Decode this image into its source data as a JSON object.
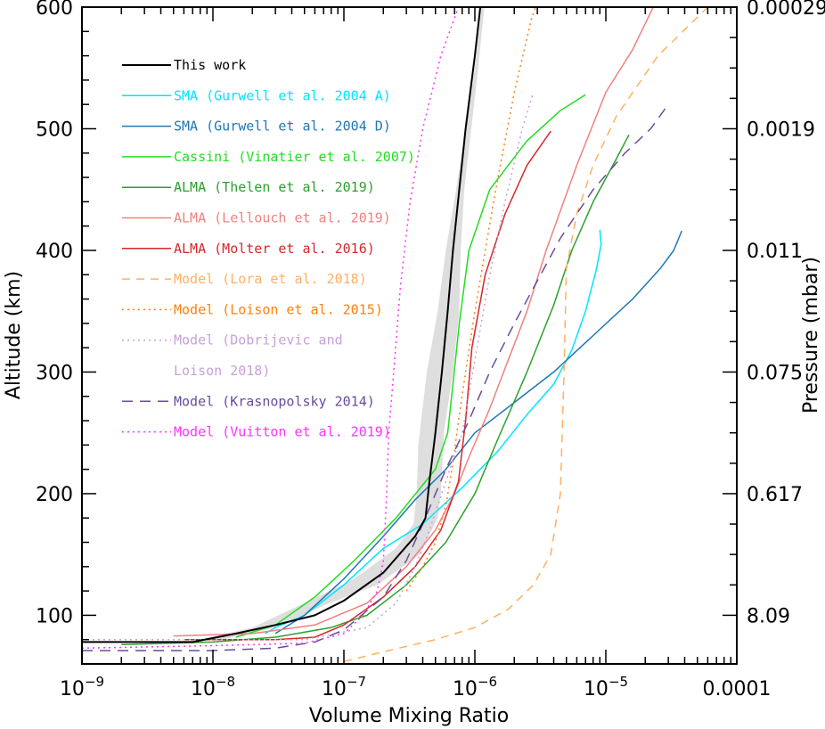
{
  "chart_data": {
    "type": "line",
    "xscale": "log",
    "xlim": [
      1e-09,
      0.0001
    ],
    "ylim": [
      60,
      600
    ],
    "xlabel": "Volume Mixing Ratio",
    "ylabel": "Altitude (km)",
    "y2label": "Pressure (mbar)",
    "x_ticks": [
      {
        "value": 1e-09,
        "base": "10",
        "exp": "−9"
      },
      {
        "value": 1e-08,
        "base": "10",
        "exp": "−8"
      },
      {
        "value": 1e-07,
        "base": "10",
        "exp": "−7"
      },
      {
        "value": 1e-06,
        "base": "10",
        "exp": "−6"
      },
      {
        "value": 1e-05,
        "base": "10",
        "exp": "−5"
      },
      {
        "value": 0.0001,
        "label": "0.0001"
      }
    ],
    "y_ticks": [
      100,
      200,
      300,
      400,
      500,
      600
    ],
    "y2_ticks": [
      {
        "altitude": 100,
        "label": "8.09"
      },
      {
        "altitude": 200,
        "label": "0.617"
      },
      {
        "altitude": 300,
        "label": "0.075"
      },
      {
        "altitude": 400,
        "label": "0.011"
      },
      {
        "altitude": 500,
        "label": "0.0019"
      },
      {
        "altitude": 600,
        "label": "0.00029"
      }
    ],
    "legend_position": "top-left",
    "uncertainty_band": {
      "color": "#dedede",
      "left": [
        [
          8e-09,
          80
        ],
        [
          2e-08,
          90
        ],
        [
          5e-08,
          110
        ],
        [
          1.2e-07,
          130
        ],
        [
          2.5e-07,
          155
        ],
        [
          3.4e-07,
          175
        ],
        [
          3.6e-07,
          200
        ],
        [
          3.7e-07,
          240
        ],
        [
          4.3e-07,
          300
        ],
        [
          5.2e-07,
          350
        ],
        [
          6e-07,
          400
        ],
        [
          7.2e-07,
          450
        ],
        [
          8.5e-07,
          500
        ],
        [
          1e-06,
          550
        ],
        [
          1.12e-06,
          600
        ]
      ],
      "right": [
        [
          1.2e-08,
          80
        ],
        [
          3e-08,
          90
        ],
        [
          7e-08,
          108
        ],
        [
          1.8e-07,
          125
        ],
        [
          3.8e-07,
          150
        ],
        [
          5.2e-07,
          180
        ],
        [
          5.5e-07,
          200
        ],
        [
          5.8e-07,
          250
        ],
        [
          6.8e-07,
          300
        ],
        [
          7.6e-07,
          350
        ],
        [
          7.8e-07,
          400
        ],
        [
          8.3e-07,
          450
        ],
        [
          9.4e-07,
          500
        ],
        [
          1.06e-06,
          550
        ],
        [
          1.18e-06,
          600
        ]
      ]
    },
    "series": [
      {
        "name": "This work",
        "color": "#000000",
        "dash": "",
        "width": 2,
        "points": [
          [
            1e-09,
            78
          ],
          [
            7e-09,
            78
          ],
          [
            1.5e-08,
            85
          ],
          [
            3e-08,
            92
          ],
          [
            6e-08,
            100
          ],
          [
            1e-07,
            112
          ],
          [
            2e-07,
            135
          ],
          [
            3.5e-07,
            165
          ],
          [
            4.2e-07,
            180
          ],
          [
            4.5e-07,
            210
          ],
          [
            5e-07,
            250
          ],
          [
            5.6e-07,
            300
          ],
          [
            6.2e-07,
            350
          ],
          [
            6.8e-07,
            400
          ],
          [
            7.6e-07,
            450
          ],
          [
            8.5e-07,
            500
          ],
          [
            1e-06,
            560
          ],
          [
            1.1e-06,
            600
          ]
        ]
      },
      {
        "name": "SMA (Gurwell et al. 2004 A)",
        "color": "#00e5ff",
        "dash": "",
        "width": 1.5,
        "points": [
          [
            2.5e-08,
            85
          ],
          [
            3e-08,
            90
          ],
          [
            5e-08,
            100
          ],
          [
            1e-07,
            125
          ],
          [
            2e-07,
            155
          ],
          [
            4e-07,
            175
          ],
          [
            8e-07,
            205
          ],
          [
            1.5e-06,
            235
          ],
          [
            2.5e-06,
            265
          ],
          [
            4e-06,
            290
          ],
          [
            5.5e-06,
            318
          ],
          [
            7e-06,
            350
          ],
          [
            8.5e-06,
            385
          ],
          [
            9.2e-06,
            405
          ],
          [
            9e-06,
            417
          ]
        ]
      },
      {
        "name": "SMA (Gurwell et al. 2004 D)",
        "color": "#1f77b4",
        "dash": "",
        "width": 1.5,
        "points": [
          [
            3e-08,
            85
          ],
          [
            5e-08,
            100
          ],
          [
            1e-07,
            130
          ],
          [
            2e-07,
            165
          ],
          [
            3.5e-07,
            195
          ],
          [
            6e-07,
            220
          ],
          [
            1e-06,
            250
          ],
          [
            2e-06,
            275
          ],
          [
            4e-06,
            300
          ],
          [
            8e-06,
            330
          ],
          [
            1.6e-05,
            360
          ],
          [
            2.6e-05,
            385
          ],
          [
            3.3e-05,
            400
          ],
          [
            3.8e-05,
            416
          ]
        ]
      },
      {
        "name": "Cassini (Vinatier et al. 2007)",
        "color": "#22dd22",
        "dash": "",
        "width": 1.5,
        "points": [
          [
            1.5e-08,
            82
          ],
          [
            3e-08,
            92
          ],
          [
            6e-08,
            115
          ],
          [
            1.2e-07,
            145
          ],
          [
            2.5e-07,
            180
          ],
          [
            5e-07,
            220
          ],
          [
            6.2e-07,
            250
          ],
          [
            6.8e-07,
            290
          ],
          [
            7.6e-07,
            340
          ],
          [
            9e-07,
            400
          ],
          [
            1.3e-06,
            450
          ],
          [
            2.5e-06,
            490
          ],
          [
            4.5e-06,
            515
          ],
          [
            7e-06,
            528
          ]
        ]
      },
      {
        "name": "ALMA (Thelen et al. 2019)",
        "color": "#2ca02c",
        "dash": "",
        "width": 1.5,
        "points": [
          [
            2e-09,
            76
          ],
          [
            1e-08,
            78
          ],
          [
            3e-08,
            82
          ],
          [
            8e-08,
            90
          ],
          [
            1.5e-07,
            100
          ],
          [
            3e-07,
            125
          ],
          [
            6e-07,
            160
          ],
          [
            1e-06,
            200
          ],
          [
            1.5e-06,
            245
          ],
          [
            2.5e-06,
            300
          ],
          [
            4e-06,
            355
          ],
          [
            5.5e-06,
            400
          ],
          [
            8e-06,
            440
          ],
          [
            1.2e-05,
            475
          ],
          [
            1.5e-05,
            495
          ]
        ]
      },
      {
        "name": "ALMA (Lellouch et al. 2019)",
        "color": "#f08080",
        "dash": "",
        "width": 1.5,
        "points": [
          [
            5e-09,
            83
          ],
          [
            2e-08,
            85
          ],
          [
            6e-08,
            92
          ],
          [
            1.5e-07,
            110
          ],
          [
            3e-07,
            140
          ],
          [
            5e-07,
            170
          ],
          [
            7e-07,
            200
          ],
          [
            9e-07,
            230
          ],
          [
            1.3e-06,
            270
          ],
          [
            1.8e-06,
            310
          ],
          [
            2.5e-06,
            350
          ],
          [
            3.5e-06,
            400
          ],
          [
            6e-06,
            470
          ],
          [
            1e-05,
            530
          ],
          [
            1.6e-05,
            565
          ],
          [
            2.3e-05,
            600
          ]
        ]
      },
      {
        "name": "ALMA (Molter et al. 2016)",
        "color": "#d62728",
        "dash": "",
        "width": 1.5,
        "points": [
          [
            6e-09,
            80
          ],
          [
            3e-08,
            80
          ],
          [
            6e-08,
            82
          ],
          [
            1e-07,
            92
          ],
          [
            2e-07,
            115
          ],
          [
            3.5e-07,
            140
          ],
          [
            5.5e-07,
            170
          ],
          [
            7.5e-07,
            210
          ],
          [
            8.5e-07,
            260
          ],
          [
            9.5e-07,
            320
          ],
          [
            1.2e-06,
            380
          ],
          [
            1.7e-06,
            430
          ],
          [
            2.5e-06,
            470
          ],
          [
            3.8e-06,
            498
          ]
        ]
      },
      {
        "name": "Model (Lora et al. 2018)",
        "color": "#ffb060",
        "dash": "9 7",
        "width": 1.5,
        "points": [
          [
            1e-07,
            62
          ],
          [
            2e-07,
            70
          ],
          [
            5e-07,
            80
          ],
          [
            1e-06,
            90
          ],
          [
            1.8e-06,
            105
          ],
          [
            2.8e-06,
            125
          ],
          [
            3.8e-06,
            150
          ],
          [
            4.5e-06,
            200
          ],
          [
            4.8e-06,
            300
          ],
          [
            5e-06,
            385
          ],
          [
            6e-06,
            430
          ],
          [
            8e-06,
            470
          ],
          [
            1.2e-05,
            510
          ],
          [
            2.5e-05,
            560
          ],
          [
            6e-05,
            600
          ]
        ]
      },
      {
        "name": "Model (Loison et al. 2015)",
        "color": "#ff7f0e",
        "dash": "2 4",
        "width": 1.5,
        "points": [
          [
            3e-07,
            120
          ],
          [
            4e-07,
            140
          ],
          [
            5e-07,
            160
          ],
          [
            6e-07,
            190
          ],
          [
            6.8e-07,
            225
          ],
          [
            7.5e-07,
            260
          ],
          [
            8.5e-07,
            300
          ],
          [
            1e-06,
            350
          ],
          [
            1.2e-06,
            400
          ],
          [
            1.5e-06,
            460
          ],
          [
            2e-06,
            530
          ],
          [
            2.7e-06,
            590
          ],
          [
            2.9e-06,
            600
          ]
        ]
      },
      {
        "name": "Model (Dobrijevic and Loison 2018)",
        "color": "#c8a0d8",
        "dash": "2 4",
        "width": 1.5,
        "points": [
          [
            1e-09,
            80
          ],
          [
            1e-08,
            80
          ],
          [
            5e-08,
            80
          ],
          [
            1.5e-07,
            90
          ],
          [
            2.5e-07,
            110
          ],
          [
            3.5e-07,
            140
          ],
          [
            4.5e-07,
            170
          ],
          [
            6e-07,
            210
          ],
          [
            8e-07,
            250
          ],
          [
            1e-06,
            310
          ],
          [
            1.3e-06,
            380
          ],
          [
            1.7e-06,
            440
          ],
          [
            2.3e-06,
            500
          ],
          [
            2.8e-06,
            530
          ]
        ]
      },
      {
        "name": "Model (Krasnopolsky 2014)",
        "color": "#6a4c9c",
        "dash": "12 8",
        "width": 1.5,
        "points": [
          [
            1e-09,
            71
          ],
          [
            1e-08,
            71
          ],
          [
            3e-08,
            73
          ],
          [
            6e-08,
            78
          ],
          [
            1e-07,
            88
          ],
          [
            2e-07,
            115
          ],
          [
            3e-07,
            145
          ],
          [
            4e-07,
            175
          ],
          [
            6e-07,
            220
          ],
          [
            9e-07,
            260
          ],
          [
            1.3e-06,
            300
          ],
          [
            2e-06,
            340
          ],
          [
            3e-06,
            375
          ],
          [
            4.5e-06,
            410
          ],
          [
            8e-06,
            450
          ],
          [
            1.4e-05,
            480
          ],
          [
            2.2e-05,
            500
          ],
          [
            3e-05,
            520
          ]
        ]
      },
      {
        "name": "Model (Vuitton et al. 2019)",
        "color": "#ff33ff",
        "dash": "2 4",
        "width": 1.5,
        "points": [
          [
            1e-09,
            73
          ],
          [
            1e-08,
            75
          ],
          [
            5e-08,
            77
          ],
          [
            1e-07,
            85
          ],
          [
            1.4e-07,
            100
          ],
          [
            1.8e-07,
            120
          ],
          [
            2e-07,
            145
          ],
          [
            2.1e-07,
            190
          ],
          [
            2.2e-07,
            250
          ],
          [
            2.4e-07,
            300
          ],
          [
            2.7e-07,
            370
          ],
          [
            3.2e-07,
            440
          ],
          [
            4e-07,
            500
          ],
          [
            5.5e-07,
            560
          ],
          [
            7.5e-07,
            600
          ]
        ]
      }
    ],
    "legend": [
      {
        "series": 0,
        "lines": [
          "This work"
        ]
      },
      {
        "series": 1,
        "lines": [
          "SMA (Gurwell et al. 2004 A)"
        ]
      },
      {
        "series": 2,
        "lines": [
          "SMA (Gurwell et al. 2004 D)"
        ]
      },
      {
        "series": 3,
        "lines": [
          "Cassini (Vinatier et al. 2007)"
        ]
      },
      {
        "series": 4,
        "lines": [
          "ALMA (Thelen et al. 2019)"
        ]
      },
      {
        "series": 5,
        "lines": [
          "ALMA (Lellouch et al. 2019)"
        ]
      },
      {
        "series": 6,
        "lines": [
          "ALMA (Molter et al. 2016)"
        ]
      },
      {
        "series": 7,
        "lines": [
          "Model (Lora et al. 2018)"
        ]
      },
      {
        "series": 8,
        "lines": [
          "Model (Loison et al. 2015)"
        ]
      },
      {
        "series": 9,
        "lines": [
          "Model (Dobrijevic and",
          "Loison 2018)"
        ]
      },
      {
        "series": 10,
        "lines": [
          "Model (Krasnopolsky 2014)"
        ]
      },
      {
        "series": 11,
        "lines": [
          "Model (Vuitton et al. 2019)"
        ]
      }
    ]
  }
}
